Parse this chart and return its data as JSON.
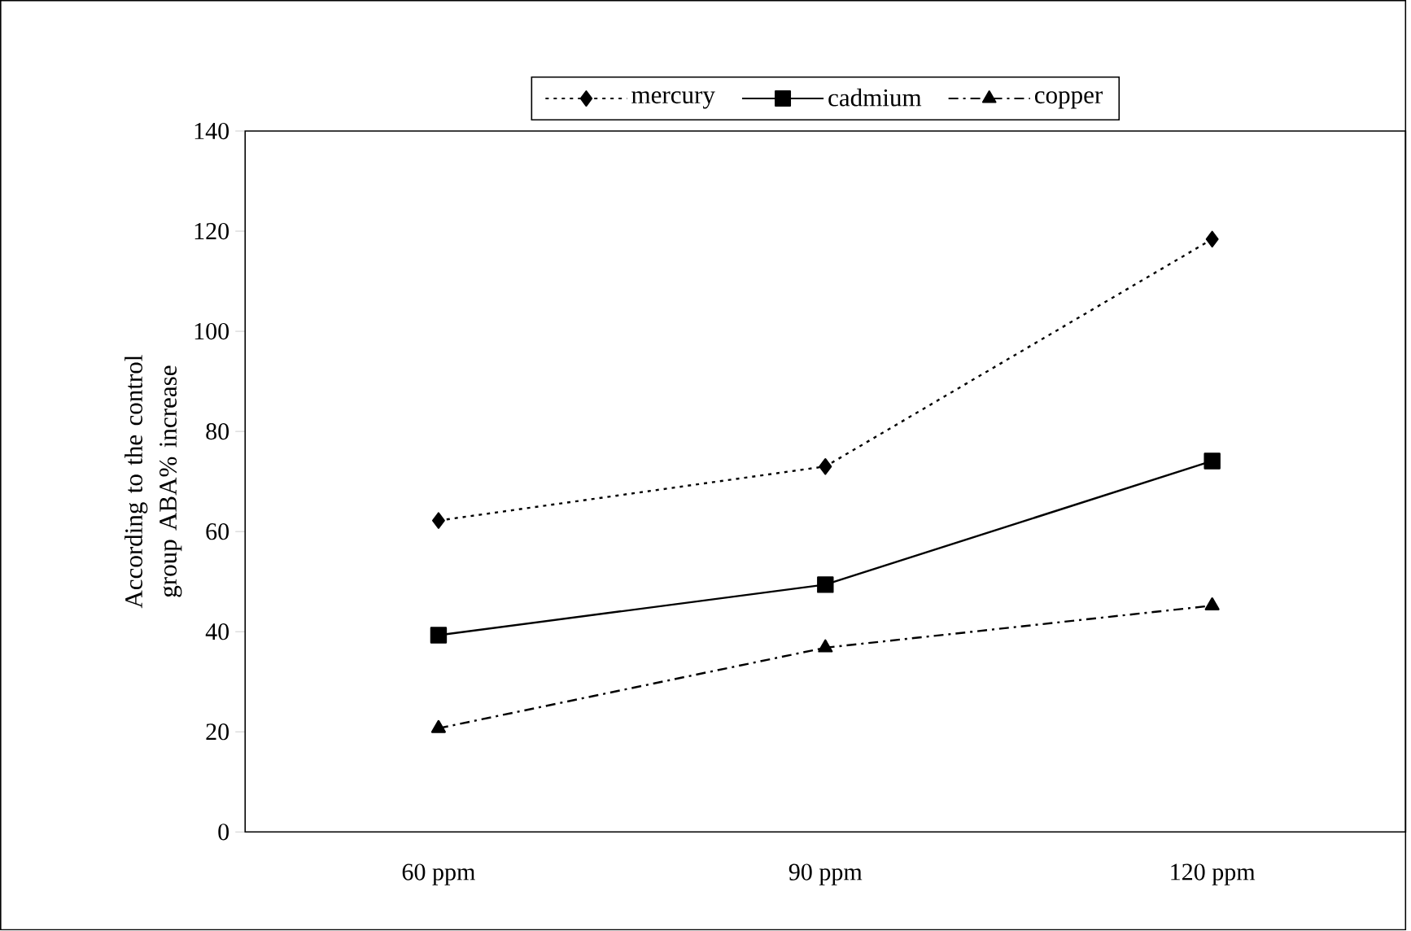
{
  "chart_data": {
    "type": "line",
    "ylabel": "According to the control group ABA% increase",
    "categories": [
      "60 ppm",
      "90 ppm",
      "120 ppm"
    ],
    "series": [
      {
        "name": "mercury",
        "color": "#000000",
        "values": [
          62.2,
          73.0,
          118.4
        ],
        "marker": "diamond",
        "line_style": "dotted"
      },
      {
        "name": "cadmium",
        "color": "#000000",
        "values": [
          39.3,
          49.4,
          74.1
        ],
        "marker": "square",
        "line_style": "solid"
      },
      {
        "name": "copper",
        "color": "#000000",
        "values": [
          20.7,
          36.8,
          45.2
        ],
        "marker": "triangle",
        "line_style": "dashed"
      }
    ],
    "ylim": [
      0,
      140
    ],
    "yticks": [
      0,
      20,
      40,
      60,
      80,
      100,
      120,
      140
    ],
    "grid": false,
    "legend": "top"
  }
}
